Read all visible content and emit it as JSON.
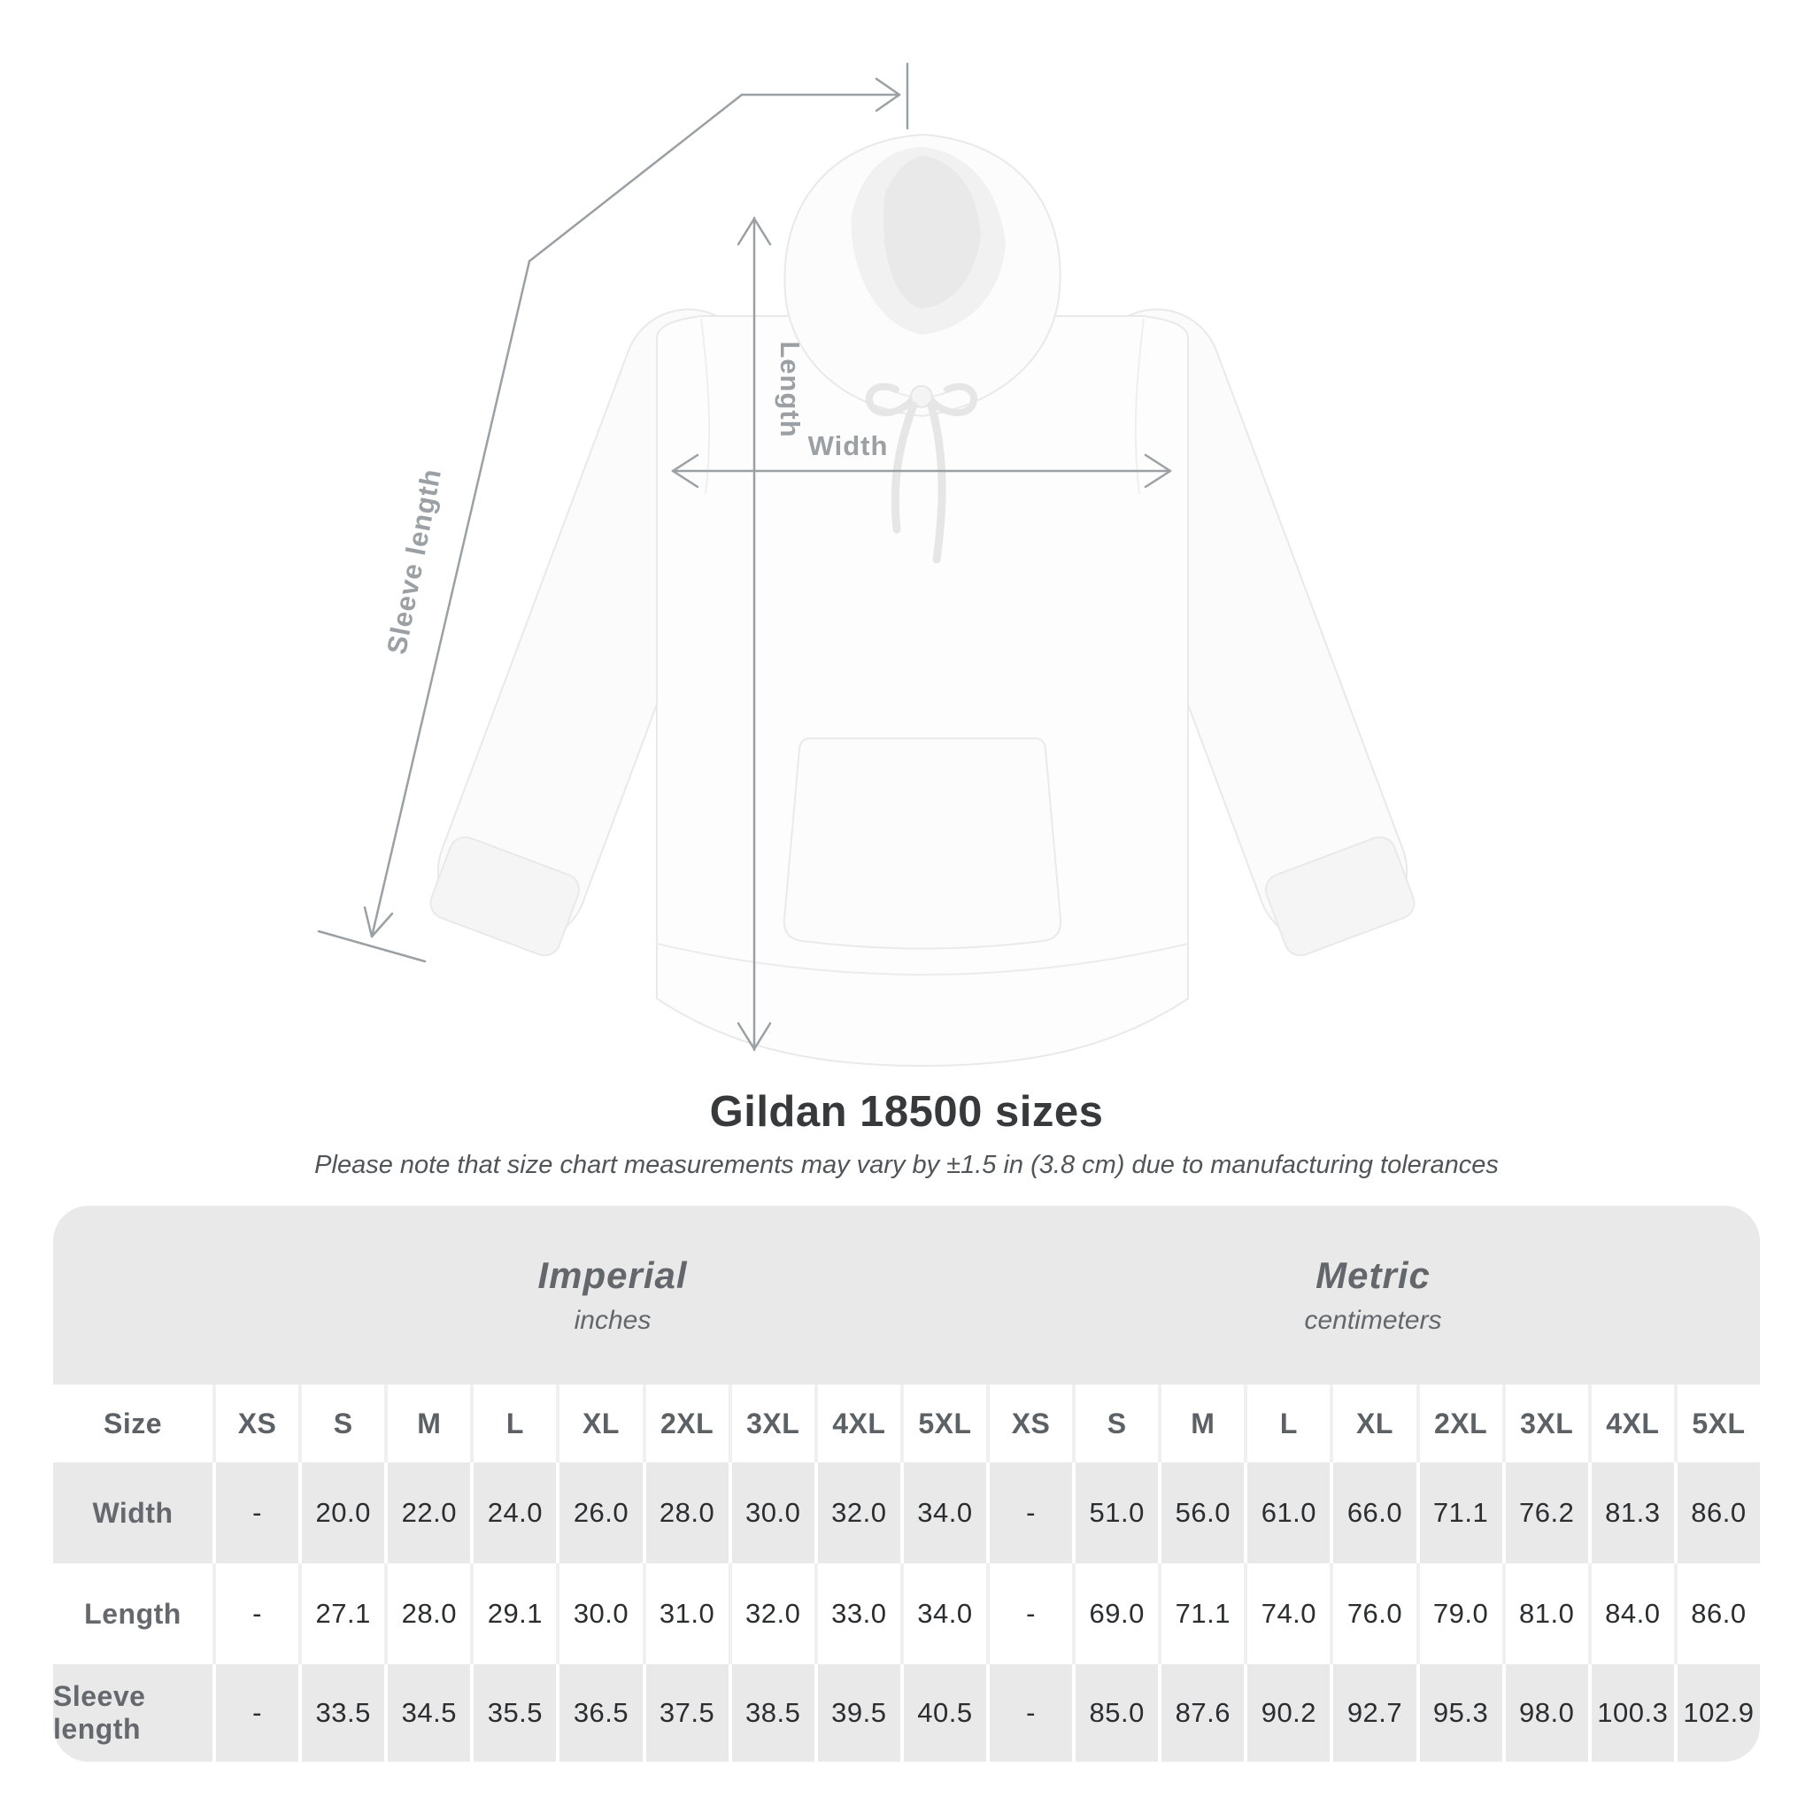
{
  "diagram": {
    "labels": {
      "length": "Length",
      "width": "Width",
      "sleeve_length": "Sleeve length"
    },
    "line_color": "#9aa0a4",
    "label_color": "#9aa0a4",
    "garment": "white pullover hoodie front view"
  },
  "colors": {
    "page_background": "#ffffff",
    "table_band_gray": "#e9e9ea",
    "stripe_row_gray": "#e9e9ea",
    "annotation_gray": "#9aa0a4",
    "title_text": "#37393b",
    "note_text": "#515558",
    "band_text": "#63676b",
    "header_text": "#5c6165",
    "value_text": "#2b2d2f"
  },
  "chart_data": {
    "type": "table",
    "title": "Gildan 18500 sizes",
    "note": "Please note that size chart measurements may vary by ±1.5 in (3.8 cm) due to manufacturing tolerances",
    "groups": [
      {
        "label": "Imperial",
        "sublabel": "inches"
      },
      {
        "label": "Metric",
        "sublabel": "centimeters"
      }
    ],
    "size_header_label": "Size",
    "sizes": [
      "XS",
      "S",
      "M",
      "L",
      "XL",
      "2XL",
      "3XL",
      "4XL",
      "5XL"
    ],
    "rows": [
      {
        "label": "Width",
        "imperial": [
          "-",
          "20.0",
          "22.0",
          "24.0",
          "26.0",
          "28.0",
          "30.0",
          "32.0",
          "34.0"
        ],
        "metric": [
          "-",
          "51.0",
          "56.0",
          "61.0",
          "66.0",
          "71.1",
          "76.2",
          "81.3",
          "86.0"
        ]
      },
      {
        "label": "Length",
        "imperial": [
          "-",
          "27.1",
          "28.0",
          "29.1",
          "30.0",
          "31.0",
          "32.0",
          "33.0",
          "34.0"
        ],
        "metric": [
          "-",
          "69.0",
          "71.1",
          "74.0",
          "76.0",
          "79.0",
          "81.0",
          "84.0",
          "86.0"
        ]
      },
      {
        "label": "Sleeve length",
        "imperial": [
          "-",
          "33.5",
          "34.5",
          "35.5",
          "36.5",
          "37.5",
          "38.5",
          "39.5",
          "40.5"
        ],
        "metric": [
          "-",
          "85.0",
          "87.6",
          "90.2",
          "92.7",
          "95.3",
          "98.0",
          "100.3",
          "102.9"
        ]
      }
    ]
  }
}
